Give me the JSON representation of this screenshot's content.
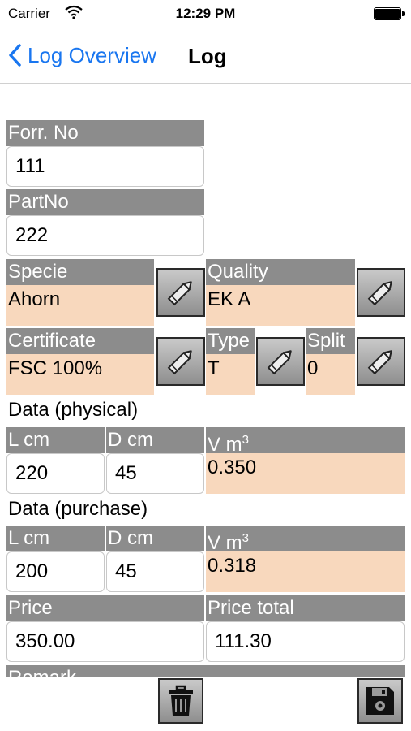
{
  "status_bar": {
    "carrier": "Carrier",
    "time": "12:29 PM"
  },
  "nav": {
    "back_label": "Log Overview",
    "title": "Log"
  },
  "form": {
    "forr_no": {
      "label": "Forr. No",
      "value": "111"
    },
    "part_no": {
      "label": "PartNo",
      "value": "222"
    },
    "specie": {
      "label": "Specie",
      "value": "Ahorn"
    },
    "quality": {
      "label": "Quality",
      "value": "EK A"
    },
    "certificate": {
      "label": "Certificate",
      "value": "FSC 100%"
    },
    "type": {
      "label": "Type",
      "value": "T"
    },
    "split": {
      "label": "Split",
      "value": "0"
    },
    "physical": {
      "section_title": "Data (physical)",
      "l_label": "L cm",
      "d_label": "D cm",
      "v_label": "V m",
      "v_unit_sup": "3",
      "l_value": "220",
      "d_value": "45",
      "v_value": "0.350"
    },
    "purchase": {
      "section_title": "Data (purchase)",
      "l_label": "L cm",
      "d_label": "D cm",
      "v_label": "V m",
      "v_unit_sup": "3",
      "l_value": "200",
      "d_value": "45",
      "v_value": "0.318"
    },
    "price": {
      "label": "Price",
      "value": "350.00"
    },
    "price_total": {
      "label": "Price total",
      "value": "111.30"
    },
    "remark": {
      "label": "Remark"
    }
  },
  "icons": {
    "edit": "pencil-icon",
    "delete": "trash-icon",
    "save": "floppy-disk-icon",
    "back": "chevron-left-icon",
    "wifi": "wifi-icon",
    "battery": "battery-icon"
  },
  "colors": {
    "accent": "#1976f0",
    "label_bg": "#8c8c8c",
    "readonly_bg": "#f8d8bd"
  }
}
